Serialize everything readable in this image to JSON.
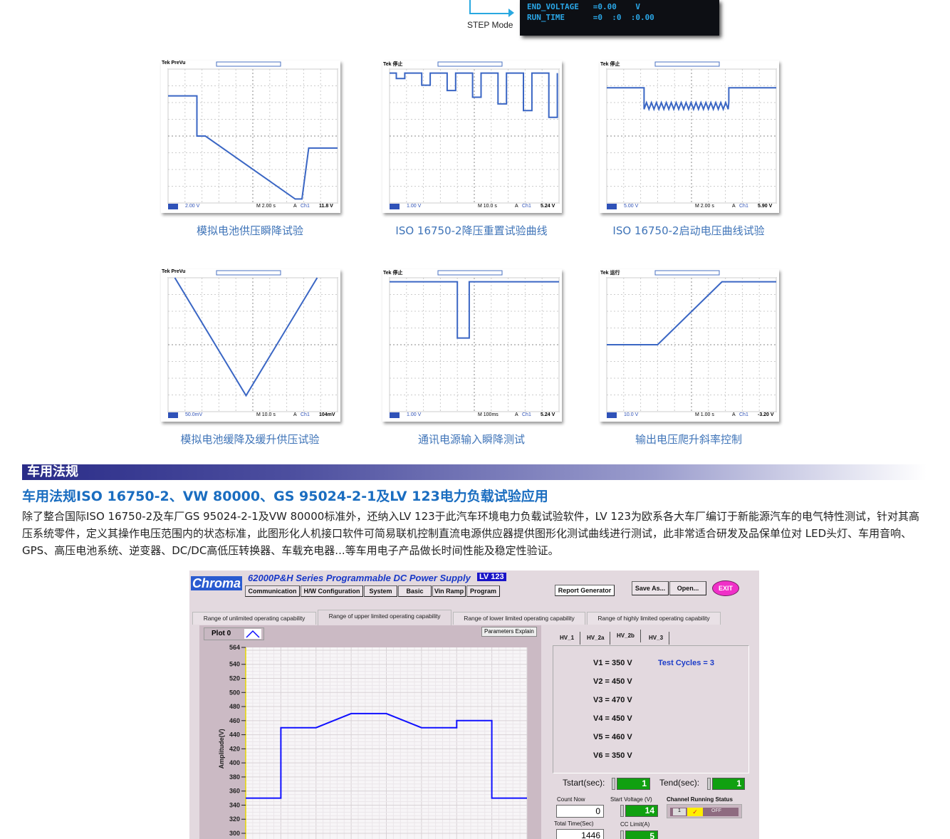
{
  "top": {
    "screen_lines": [
      "END_VOLTAGE   =0.00    V",
      "RUN_TIME      =0  :0  :0.00"
    ],
    "step_mode": "STEP Mode"
  },
  "scopes": [
    {
      "header": "Tek PreVu",
      "footer_left": "2.00 V",
      "footer_mid": "M 2.00 s",
      "footer_right": "11.8 V",
      "caption": "模拟电池供压瞬降试验"
    },
    {
      "header": "Tek 停止",
      "footer_left": "1.00 V",
      "footer_mid": "M 10.0 s",
      "footer_right": "5.24 V",
      "caption": "ISO 16750-2降压重置试验曲线"
    },
    {
      "header": "Tek 停止",
      "footer_left": "5.00 V",
      "footer_mid": "M 2.00 s",
      "footer_right": "5.90 V",
      "caption": "ISO 16750-2启动电压曲线试验"
    },
    {
      "header": "Tek PreVu",
      "footer_left": "50.0mV",
      "footer_mid": "M 10.0 s",
      "footer_right": "104mV",
      "caption": "模拟电池缓降及缓升供压试验"
    },
    {
      "header": "Tek 停止",
      "footer_left": "1.00 V",
      "footer_mid": "M 100ms",
      "footer_right": "5.24 V",
      "caption": "通讯电源输入瞬降测试"
    },
    {
      "header": "Tek 运行",
      "footer_left": "10.0 V",
      "footer_mid": "M 1.00 s",
      "footer_right": "-3.20 V",
      "caption": "输出电压爬升斜率控制"
    }
  ],
  "scope_channel": "Ch1",
  "scope_trigger": "A",
  "section": {
    "banner": "车用法规",
    "title": "车用法规ISO 16750-2、VW 80000、GS 95024-2-1及LV 123电力负载试验应用",
    "paragraph": "除了整合国际ISO 16750-2及车厂GS 95024-2-1及VW 80000标准外，还纳入LV 123于此汽车环境电力负载试验软件，LV 123为欧系各大车厂编订于新能源汽车的电气特性测试，针对其高压系统零件，定义其操作电压范围内的状态标准，此图形化人机接口软件可简易联机控制直流电源供应器提供图形化测试曲线进行测试，此非常适合研发及品保单位对 LED头灯、车用音响、GPS、高压电池系统、逆变器、DC/DC高低压转换器、车载充电器...等车用电子产品做长时间性能及稳定性验证。"
  },
  "software": {
    "logo": "Chroma",
    "title": "62000P&H Series  Programmable DC Power Supply",
    "badge": "LV 123",
    "menu": [
      "Communication",
      "H/W Configuration",
      "System",
      "Basic",
      "Vin Ramp",
      "Program"
    ],
    "report": "Report Generator",
    "save_as": "Save As...",
    "open": "Open...",
    "exit": "EXIT",
    "tabs": [
      "Range of unlimited operating capability",
      "Range of upper limited operating capability",
      "Range of lower limited operating capability",
      "Range of highly limited operating capability"
    ],
    "active_tab": 1,
    "plot_label": "Plot 0",
    "params_explain": "Parameters Explain",
    "hv_tabs": [
      "HV_1",
      "HV_2a",
      "HV_2b",
      "HV_3"
    ],
    "active_hv": 2,
    "voltages": [
      "V1 = 350 V",
      "V2 = 450 V",
      "V3 = 470 V",
      "V4 = 450 V",
      "V5 = 460 V",
      "V6 = 350 V"
    ],
    "test_cycles": "Test Cycles = 3",
    "tstart_label": "Tstart(sec):",
    "tstart": "1",
    "tend_label": "Tend(sec):",
    "tend": "1",
    "count_now_label": "Count Now",
    "count_now": "0",
    "start_voltage_label": "Start Voltage (V)",
    "start_voltage": "14",
    "channel_status_label": "Channel Running Status",
    "channel": "1",
    "channel_state": "OFF",
    "total_time_label": "Total Time(Sec)",
    "total_time": "1446",
    "cc_limit_label": "CC Limit(A)",
    "cc_limit": "5"
  },
  "chart_data": {
    "type": "line",
    "ylabel": "Amplitude(V)",
    "ylim": [
      300,
      564
    ],
    "yticks": [
      "564",
      "540",
      "520",
      "500",
      "480",
      "460",
      "440",
      "420",
      "400",
      "380",
      "360",
      "340",
      "320",
      "300"
    ],
    "series": [
      {
        "x": [
          0,
          1,
          1,
          2,
          3,
          4,
          5,
          6,
          6,
          7,
          7,
          8
        ],
        "y": [
          350,
          350,
          450,
          450,
          470,
          470,
          450,
          450,
          460,
          460,
          350,
          350
        ]
      }
    ],
    "line_color": "#1010ff"
  },
  "colors": {
    "accent": "#1a6dc0",
    "caption": "#3f74b8",
    "trace": "#3a66c4"
  }
}
